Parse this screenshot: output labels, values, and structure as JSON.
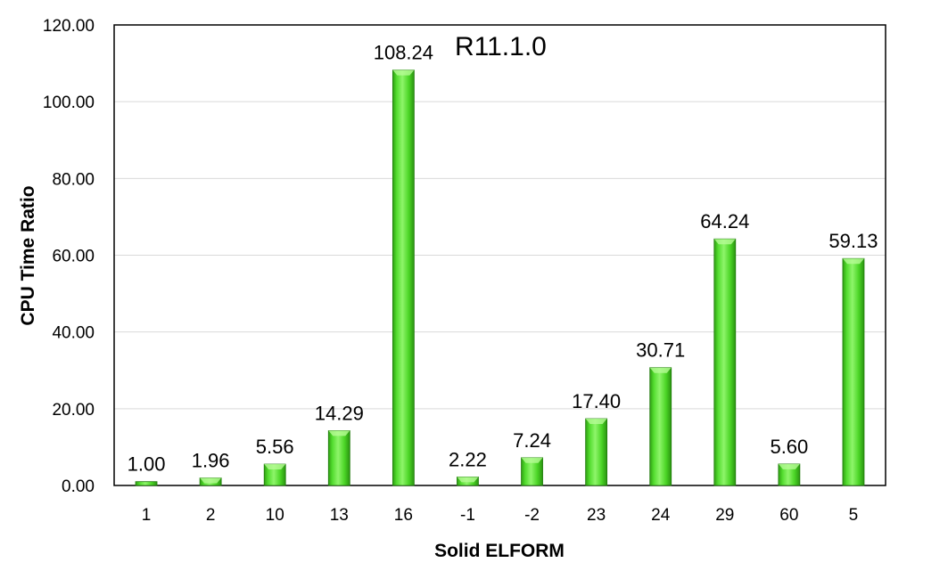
{
  "chart_data": {
    "type": "bar",
    "title": "R11.1.0",
    "xlabel": "Solid ELFORM",
    "ylabel": "CPU Time Ratio",
    "categories": [
      "1",
      "2",
      "10",
      "13",
      "16",
      "-1",
      "-2",
      "23",
      "24",
      "29",
      "60",
      "5"
    ],
    "values": [
      1.0,
      1.96,
      5.56,
      14.29,
      108.24,
      2.22,
      7.24,
      17.4,
      30.71,
      64.24,
      5.6,
      59.13
    ],
    "data_labels": [
      "1.00",
      "1.96",
      "5.56",
      "14.29",
      "108.24",
      "2.22",
      "7.24",
      "17.40",
      "30.71",
      "64.24",
      "5.60",
      "59.13"
    ],
    "yticks": [
      "0.00",
      "20.00",
      "40.00",
      "60.00",
      "80.00",
      "100.00",
      "120.00"
    ],
    "ylim": [
      0,
      120
    ],
    "grid": true,
    "legend": "none",
    "bar_color": "#44dd22"
  }
}
